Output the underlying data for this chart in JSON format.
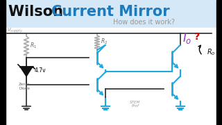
{
  "title_wilson": "Wilson ",
  "title_cm": "Current Mirror",
  "subtitle": "How does it work?",
  "bg_top": "#d4e8f7",
  "bg_bottom": "#ffffff",
  "circuit_color": "#1ea8e0",
  "wire_color": "#2a2a2a",
  "title_black": "#111111",
  "title_blue": "#1a7bbf",
  "subtitle_color": "#999999",
  "io_color": "#9933cc",
  "question_color": "#cc0000",
  "ro_color": "#111111",
  "resistor_color": "#aaaaaa",
  "label_color": "#666666",
  "vsupply_color": "#999999",
  "zener_color": "#111111",
  "gnd_color": "#2a2a2a",
  "black_bar_color": "#000000",
  "stem_color": "#999999",
  "title_fontsize": 15,
  "subtitle_fontsize": 7
}
